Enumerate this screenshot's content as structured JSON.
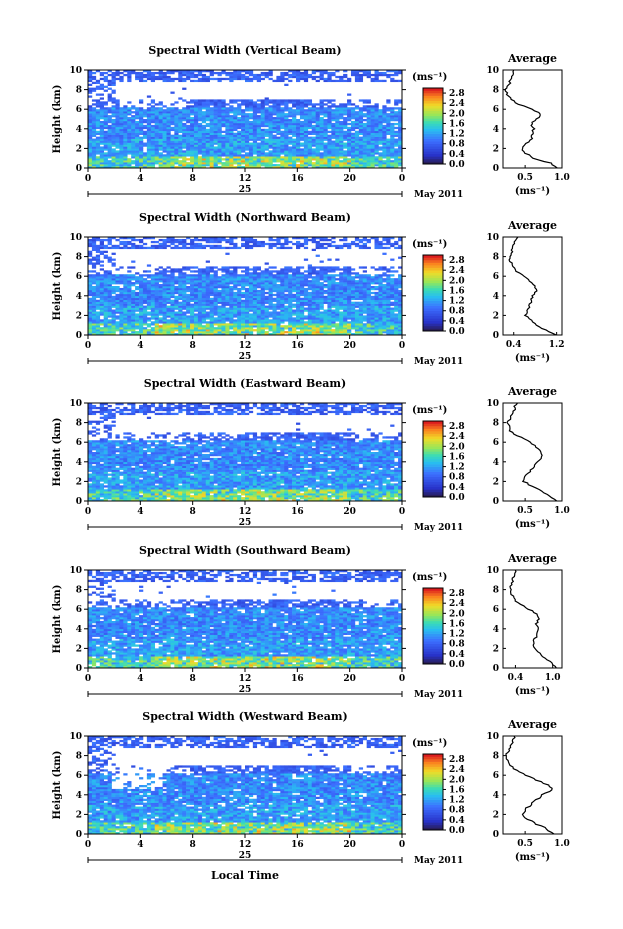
{
  "figure": {
    "month_label": "May 2011",
    "day_label": "25",
    "xlabel": "Local Time",
    "units_label": "(ms⁻¹)",
    "average_title": "Average",
    "average_xlabel": "(ms⁻¹)"
  },
  "chart_data": [
    {
      "type": "heatmap",
      "title": "Spectral Width (Vertical Beam)",
      "ylabel": "Height (km)",
      "xlabel": "Local Time",
      "x_ticks": [
        "0",
        "4",
        "8",
        "12",
        "16",
        "20",
        "0"
      ],
      "y_ticks": [
        "0",
        "2",
        "4",
        "6",
        "8",
        "10"
      ],
      "xlim": [
        0,
        24
      ],
      "ylim": [
        0,
        10
      ],
      "colorbar": {
        "label": "(ms⁻¹)",
        "ticks": [
          "0.0",
          "0.4",
          "0.8",
          "1.2",
          "1.6",
          "2.0",
          "2.4",
          "2.8"
        ],
        "range": [
          0,
          3.0
        ]
      },
      "average_profile": {
        "title": "Average",
        "xlabel": "(ms⁻¹)",
        "x_ticks": [
          "0.5",
          "1.0"
        ],
        "xlim": [
          0.2,
          1.0
        ],
        "ylim": [
          0,
          10
        ],
        "height": [
          0,
          0.5,
          1,
          1.5,
          2,
          2.5,
          3,
          3.5,
          4,
          4.5,
          5,
          5.5,
          6,
          6.5,
          7,
          7.5,
          8,
          8.5,
          9,
          9.5,
          10
        ],
        "value": [
          0.95,
          0.85,
          0.62,
          0.5,
          0.45,
          0.52,
          0.58,
          0.6,
          0.62,
          0.58,
          0.66,
          0.72,
          0.6,
          0.42,
          0.3,
          0.26,
          0.24,
          0.28,
          0.3,
          0.34,
          0.36
        ]
      }
    },
    {
      "type": "heatmap",
      "title": "Spectral Width (Northward Beam)",
      "ylabel": "Height (km)",
      "xlabel": "Local Time",
      "x_ticks": [
        "0",
        "4",
        "8",
        "12",
        "16",
        "20",
        "0"
      ],
      "y_ticks": [
        "0",
        "2",
        "4",
        "6",
        "8",
        "10"
      ],
      "xlim": [
        0,
        24
      ],
      "ylim": [
        0,
        10
      ],
      "colorbar": {
        "label": "(ms⁻¹)",
        "ticks": [
          "0.0",
          "0.4",
          "0.8",
          "1.2",
          "1.6",
          "2.0",
          "2.4",
          "2.8"
        ],
        "range": [
          0,
          3.0
        ]
      },
      "average_profile": {
        "title": "Average",
        "xlabel": "(ms⁻¹)",
        "x_ticks": [
          "0.4",
          "1.2"
        ],
        "xlim": [
          0.2,
          1.3
        ],
        "ylim": [
          0,
          10
        ],
        "height": [
          0,
          0.5,
          1,
          1.5,
          2,
          2.5,
          3,
          3.5,
          4,
          4.5,
          5,
          5.5,
          6,
          6.5,
          7,
          7.5,
          8,
          8.5,
          9,
          9.5,
          10
        ],
        "value": [
          1.2,
          1.0,
          0.82,
          0.72,
          0.62,
          0.66,
          0.7,
          0.72,
          0.76,
          0.82,
          0.78,
          0.7,
          0.58,
          0.45,
          0.38,
          0.34,
          0.32,
          0.36,
          0.38,
          0.42,
          0.46
        ]
      }
    },
    {
      "type": "heatmap",
      "title": "Spectral Width (Eastward Beam)",
      "ylabel": "Height (km)",
      "xlabel": "Local Time",
      "x_ticks": [
        "0",
        "4",
        "8",
        "12",
        "16",
        "20",
        "0"
      ],
      "y_ticks": [
        "0",
        "2",
        "4",
        "6",
        "8",
        "10"
      ],
      "xlim": [
        0,
        24
      ],
      "ylim": [
        0,
        10
      ],
      "colorbar": {
        "label": "(ms⁻¹)",
        "ticks": [
          "0.0",
          "0.4",
          "0.8",
          "1.2",
          "1.6",
          "2.0",
          "2.4",
          "2.8"
        ],
        "range": [
          0,
          3.0
        ]
      },
      "average_profile": {
        "title": "Average",
        "xlabel": "(ms⁻¹)",
        "x_ticks": [
          "0.5",
          "1.0"
        ],
        "xlim": [
          0.2,
          1.0
        ],
        "ylim": [
          0,
          10
        ],
        "height": [
          0,
          0.5,
          1,
          1.5,
          2,
          2.5,
          3,
          3.5,
          4,
          4.5,
          5,
          5.5,
          6,
          6.5,
          7,
          7.5,
          8,
          8.5,
          9,
          9.5,
          10
        ],
        "value": [
          0.92,
          0.82,
          0.72,
          0.6,
          0.48,
          0.5,
          0.56,
          0.62,
          0.68,
          0.74,
          0.72,
          0.66,
          0.56,
          0.44,
          0.32,
          0.28,
          0.26,
          0.3,
          0.34,
          0.36,
          0.38
        ]
      }
    },
    {
      "type": "heatmap",
      "title": "Spectral Width (Southward Beam)",
      "ylabel": "Height (km)",
      "xlabel": "Local Time",
      "x_ticks": [
        "0",
        "4",
        "8",
        "12",
        "16",
        "20",
        "0"
      ],
      "y_ticks": [
        "0",
        "2",
        "4",
        "6",
        "8",
        "10"
      ],
      "xlim": [
        0,
        24
      ],
      "ylim": [
        0,
        10
      ],
      "colorbar": {
        "label": "(ms⁻¹)",
        "ticks": [
          "0.0",
          "0.4",
          "0.8",
          "1.2",
          "1.6",
          "2.0",
          "2.4",
          "2.8"
        ],
        "range": [
          0,
          3.0
        ]
      },
      "average_profile": {
        "title": "Average",
        "xlabel": "(ms⁻¹)",
        "x_ticks": [
          "0.4",
          "1.0"
        ],
        "xlim": [
          0.2,
          1.15
        ],
        "ylim": [
          0,
          10
        ],
        "height": [
          0,
          0.5,
          1,
          1.5,
          2,
          2.5,
          3,
          3.5,
          4,
          4.5,
          5,
          5.5,
          6,
          6.5,
          7,
          7.5,
          8,
          8.5,
          9,
          9.5,
          10
        ],
        "value": [
          1.05,
          1.0,
          0.88,
          0.78,
          0.72,
          0.68,
          0.72,
          0.74,
          0.78,
          0.74,
          0.78,
          0.76,
          0.62,
          0.48,
          0.38,
          0.34,
          0.32,
          0.34,
          0.36,
          0.38,
          0.4
        ]
      }
    },
    {
      "type": "heatmap",
      "title": "Spectral Width (Westward Beam)",
      "ylabel": "Height (km)",
      "xlabel": "Local Time",
      "x_ticks": [
        "0",
        "4",
        "8",
        "12",
        "16",
        "20",
        "0"
      ],
      "y_ticks": [
        "0",
        "2",
        "4",
        "6",
        "8",
        "10"
      ],
      "xlim": [
        0,
        24
      ],
      "ylim": [
        0,
        10
      ],
      "colorbar": {
        "label": "(ms⁻¹)",
        "ticks": [
          "0.0",
          "0.4",
          "0.8",
          "1.2",
          "1.6",
          "2.0",
          "2.4",
          "2.8"
        ],
        "range": [
          0,
          3.0
        ]
      },
      "average_profile": {
        "title": "Average",
        "xlabel": "(ms⁻¹)",
        "x_ticks": [
          "0.5",
          "1.0"
        ],
        "xlim": [
          0.2,
          1.0
        ],
        "ylim": [
          0,
          10
        ],
        "height": [
          0,
          0.5,
          1,
          1.5,
          2,
          2.5,
          3,
          3.5,
          4,
          4.5,
          5,
          5.5,
          6,
          6.5,
          7,
          7.5,
          8,
          8.5,
          9,
          9.5,
          10
        ],
        "value": [
          0.88,
          0.8,
          0.66,
          0.54,
          0.46,
          0.5,
          0.58,
          0.66,
          0.74,
          0.86,
          0.82,
          0.66,
          0.5,
          0.38,
          0.3,
          0.26,
          0.24,
          0.28,
          0.3,
          0.34,
          0.36
        ]
      }
    }
  ]
}
